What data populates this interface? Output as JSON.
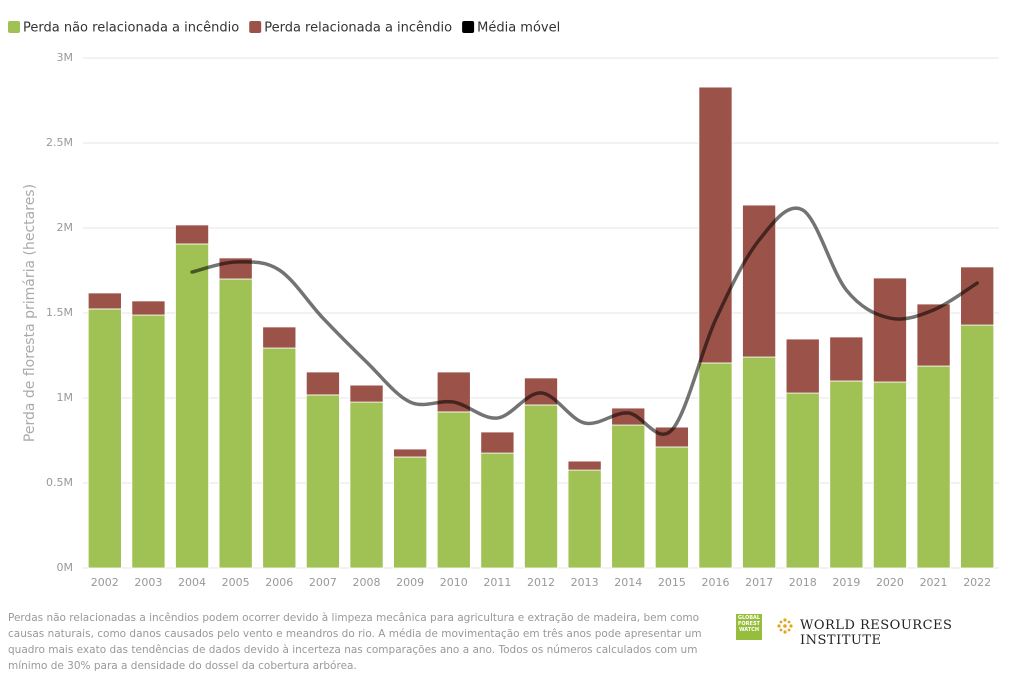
{
  "chart_data": {
    "type": "stacked-bar-line",
    "y_label": "Perda de floresta primária (hectares)",
    "categories": [
      "2002",
      "2003",
      "2004",
      "2005",
      "2006",
      "2007",
      "2008",
      "2009",
      "2010",
      "2011",
      "2012",
      "2013",
      "2014",
      "2015",
      "2016",
      "2017",
      "2018",
      "2019",
      "2020",
      "2021",
      "2022"
    ],
    "series": [
      {
        "name": "Perda não relacionada a incêndio",
        "color": "#a0c255",
        "type": "bar",
        "values": [
          1524000,
          1488000,
          1906000,
          1700000,
          1294000,
          1018000,
          976000,
          653000,
          918000,
          676000,
          959000,
          576000,
          841000,
          712000,
          1206000,
          1241000,
          1029000,
          1100000,
          1094000,
          1188000,
          1429000
        ]
      },
      {
        "name": "Perda relacionada a incêndio",
        "color": "#9b5349",
        "type": "bar",
        "values": [
          94000,
          83000,
          112000,
          124000,
          124000,
          135000,
          100000,
          47000,
          235000,
          124000,
          159000,
          53000,
          100000,
          117000,
          1623000,
          894000,
          318000,
          259000,
          612000,
          365000,
          342000
        ]
      },
      {
        "name": "Média móvel",
        "color": "#000000",
        "type": "line",
        "values": [
          null,
          null,
          1741000,
          1800000,
          1753000,
          1470000,
          1212000,
          976000,
          976000,
          882000,
          1030000,
          853000,
          912000,
          812000,
          1459000,
          1929000,
          2106000,
          1635000,
          1470000,
          1518000,
          1676000
        ]
      }
    ],
    "ylim": [
      0,
      3000000
    ],
    "yticks": [
      {
        "value": 0,
        "label": "0M"
      },
      {
        "value": 500000,
        "label": "0.5M"
      },
      {
        "value": 1000000,
        "label": "1M"
      },
      {
        "value": 1500000,
        "label": "1.5M"
      },
      {
        "value": 2000000,
        "label": "2M"
      },
      {
        "value": 2500000,
        "label": "2.5M"
      },
      {
        "value": 3000000,
        "label": "3M"
      }
    ],
    "grid": true
  },
  "footer": {
    "note": "Perdas não relacionadas a incêndios podem ocorrer devido à limpeza mecânica para agricultura e extração de madeira, bem como causas naturais, como danos causados pelo vento e meandros do rio. A média de movimentação em três anos pode apresentar um quadro mais exato das tendências de dados devido à incerteza nas comparações ano a ano. Todos os números calculados com um mínimo de 30% para a densidade do dossel da cobertura arbórea.",
    "logo_gfw": "GLOBAL FOREST WATCH",
    "logo_wri": "WORLD RESOURCES INSTITUTE"
  }
}
